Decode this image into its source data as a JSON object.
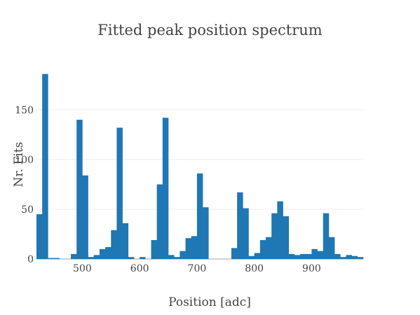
{
  "chart_data": {
    "type": "bar",
    "title": "Fitted peak position spectrum",
    "xlabel": "Position [adc]",
    "ylabel": "Nr. Fits",
    "bar_color": "#1f77b4",
    "grid": true,
    "xlim": [
      420,
      990
    ],
    "ylim": [
      0,
      190
    ],
    "bin_width": 10,
    "x_ticks": [
      500,
      600,
      700,
      800,
      900
    ],
    "y_ticks": [
      0,
      50,
      100,
      150
    ],
    "x_tick_labels": [
      "500",
      "600",
      "700",
      "800",
      "900"
    ],
    "y_tick_labels": [
      "0",
      "50",
      "100",
      "150"
    ],
    "bin_starts": [
      420,
      430,
      440,
      450,
      460,
      470,
      480,
      490,
      500,
      510,
      520,
      530,
      540,
      550,
      560,
      570,
      580,
      590,
      600,
      610,
      620,
      630,
      640,
      650,
      660,
      670,
      680,
      690,
      700,
      710,
      720,
      730,
      740,
      750,
      760,
      770,
      780,
      790,
      800,
      810,
      820,
      830,
      840,
      850,
      860,
      870,
      880,
      890,
      900,
      910,
      920,
      930,
      940,
      950,
      960,
      970,
      980
    ],
    "values": [
      45,
      186,
      1,
      1,
      0,
      0,
      5,
      140,
      84,
      2,
      4,
      10,
      12,
      29,
      132,
      36,
      2,
      0,
      2,
      0,
      19,
      75,
      142,
      4,
      2,
      8,
      21,
      23,
      86,
      52,
      0,
      0,
      0,
      0,
      11,
      67,
      51,
      3,
      6,
      19,
      22,
      46,
      58,
      43,
      5,
      4,
      5,
      5,
      10,
      8,
      46,
      22,
      5,
      2,
      4,
      3,
      2
    ]
  }
}
